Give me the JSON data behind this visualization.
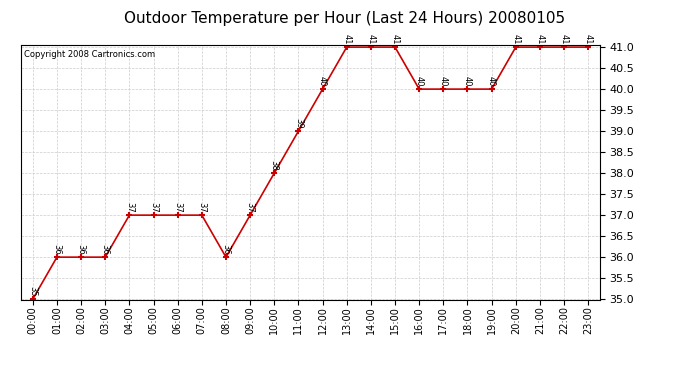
{
  "title": "Outdoor Temperature per Hour (Last 24 Hours) 20080105",
  "copyright": "Copyright 2008 Cartronics.com",
  "hours": [
    "00:00",
    "01:00",
    "02:00",
    "03:00",
    "04:00",
    "05:00",
    "06:00",
    "07:00",
    "08:00",
    "09:00",
    "10:00",
    "11:00",
    "12:00",
    "13:00",
    "14:00",
    "15:00",
    "16:00",
    "17:00",
    "18:00",
    "19:00",
    "20:00",
    "21:00",
    "22:00",
    "23:00"
  ],
  "temps": [
    35,
    36,
    36,
    36,
    37,
    37,
    37,
    37,
    36,
    37,
    38,
    39,
    40,
    41,
    41,
    41,
    40,
    40,
    40,
    40,
    41,
    41,
    41,
    41
  ],
  "ylim_min": 35.0,
  "ylim_max": 41.0,
  "line_color": "#cc0000",
  "marker_color": "#cc0000",
  "bg_color": "#ffffff",
  "grid_color": "#cccccc",
  "title_fontsize": 11,
  "copyright_fontsize": 6,
  "label_fontsize": 6,
  "tick_fontsize": 7,
  "ytick_fontsize": 8
}
